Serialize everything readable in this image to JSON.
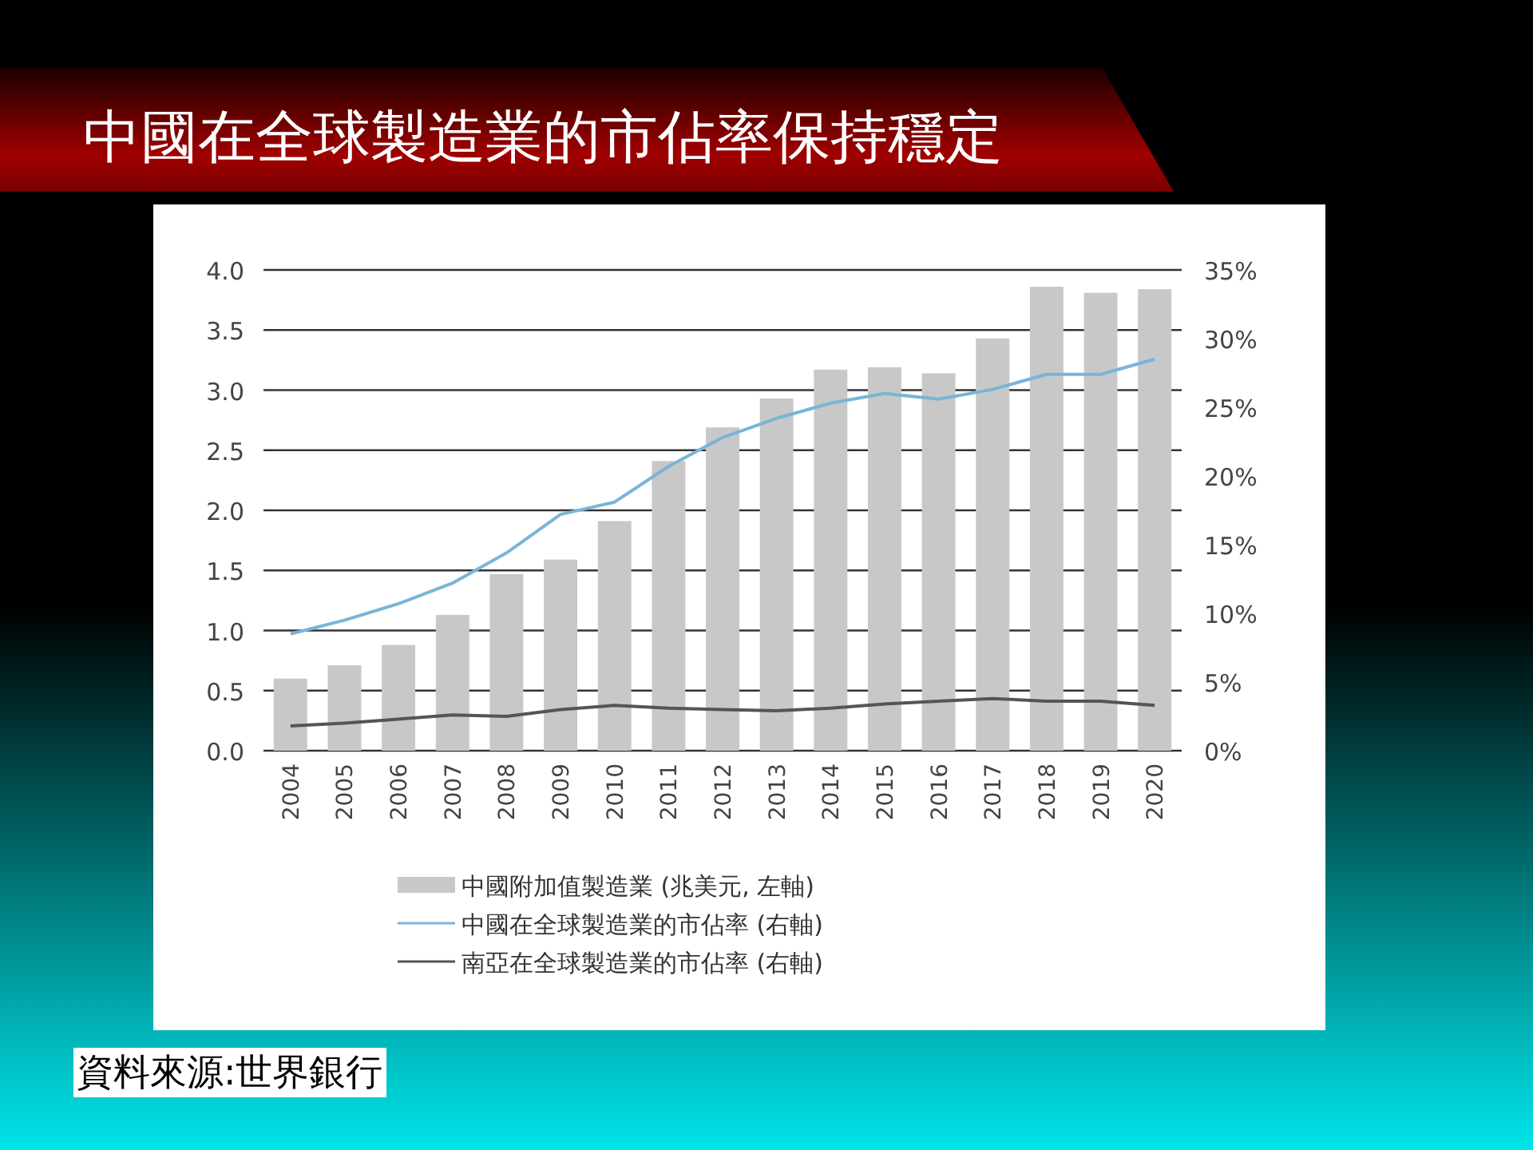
{
  "chart_data": {
    "type": "bar",
    "title": "中國在全球製造業的市佔率保持穩定",
    "categories": [
      "2004",
      "2005",
      "2006",
      "2007",
      "2008",
      "2009",
      "2010",
      "2011",
      "2012",
      "2013",
      "2014",
      "2015",
      "2016",
      "2017",
      "2018",
      "2019",
      "2020"
    ],
    "series": [
      {
        "name": "中國附加值製造業 (兆美元, 左軸)",
        "color": "#c8c8c8",
        "values": [
          0.6,
          0.71,
          0.88,
          1.13,
          1.47,
          1.59,
          1.91,
          2.41,
          2.69,
          2.93,
          3.17,
          3.19,
          3.14,
          3.43,
          3.86,
          3.81,
          3.84
        ]
      },
      {
        "name": "中國在全球製造業的市佔率 (右軸)",
        "type": "line",
        "axis": "y2",
        "color": "#7ab4d8",
        "values": [
          8.5,
          9.5,
          10.7,
          12.2,
          14.4,
          17.2,
          18.1,
          20.7,
          22.8,
          24.2,
          25.3,
          26,
          25.6,
          26.3,
          27.4,
          27.4,
          28.5
        ]
      },
      {
        "name": "南亞在全球製造業的市佔率 (右軸)",
        "type": "line",
        "axis": "y2",
        "color": "#555555",
        "values": [
          1.8,
          2.0,
          2.3,
          2.6,
          2.5,
          3.0,
          3.3,
          3.1,
          3.0,
          2.9,
          3.1,
          3.4,
          3.6,
          3.8,
          3.6,
          3.6,
          3.3
        ]
      }
    ],
    "ylim": [
      0,
      4
    ],
    "yticks": [
      {
        "value": 0,
        "label": "0.0"
      },
      {
        "value": 0.5,
        "label": "0.5"
      },
      {
        "value": 1,
        "label": "1.0"
      },
      {
        "value": 1.5,
        "label": "1.5"
      },
      {
        "value": 2,
        "label": "2.0"
      },
      {
        "value": 2.5,
        "label": "2.5"
      },
      {
        "value": 3,
        "label": "3.0"
      },
      {
        "value": 3.5,
        "label": "3.5"
      },
      {
        "value": 4,
        "label": "4.0"
      }
    ],
    "y2lim": [
      0,
      35
    ],
    "y2ticks": [
      {
        "value": 0,
        "label": "0%"
      },
      {
        "value": 5,
        "label": "5%"
      },
      {
        "value": 10,
        "label": "10%"
      },
      {
        "value": 15,
        "label": "15%"
      },
      {
        "value": 20,
        "label": "20%"
      },
      {
        "value": 25,
        "label": "25%"
      },
      {
        "value": 30,
        "label": "30%"
      },
      {
        "value": 35,
        "label": "35%"
      }
    ],
    "grid": "y",
    "legend": "bottom",
    "annotations": [
      "資料來源:世界銀行"
    ]
  }
}
